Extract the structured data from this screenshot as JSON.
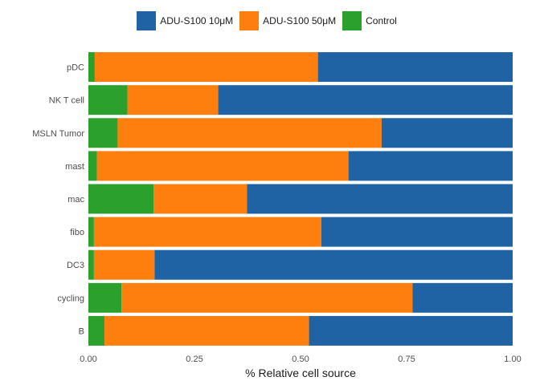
{
  "chart_data": {
    "type": "bar",
    "orientation": "horizontal",
    "stacked": true,
    "title": "",
    "xlabel": "% Relative cell source",
    "ylabel": "",
    "xlim": [
      0,
      1
    ],
    "x_ticks": [
      "0.00",
      "0.25",
      "0.50",
      "0.75",
      "1.00"
    ],
    "x_tick_values": [
      0,
      0.25,
      0.5,
      0.75,
      1.0
    ],
    "categories": [
      "pDC",
      "NK T cell",
      "MSLN Tumor",
      "mast",
      "mac",
      "fibo",
      "DC3",
      "cycling",
      "B"
    ],
    "series": [
      {
        "name": "Control",
        "color": "#2ca02c",
        "values": [
          0.015,
          0.092,
          0.069,
          0.02,
          0.154,
          0.013,
          0.013,
          0.078,
          0.038
        ]
      },
      {
        "name": "ADU-S100 50μM",
        "color": "#ff7f0e",
        "values": [
          0.526,
          0.214,
          0.622,
          0.593,
          0.22,
          0.536,
          0.143,
          0.686,
          0.482
        ]
      },
      {
        "name": "ADU-S100 10μM",
        "color": "#1f63a4",
        "values": [
          0.459,
          0.694,
          0.309,
          0.387,
          0.626,
          0.451,
          0.844,
          0.236,
          0.48
        ]
      }
    ],
    "legend_order": [
      "ADU-S100 10μM",
      "ADU-S100 50μM",
      "Control"
    ],
    "legend_position": "top",
    "grid": false
  }
}
